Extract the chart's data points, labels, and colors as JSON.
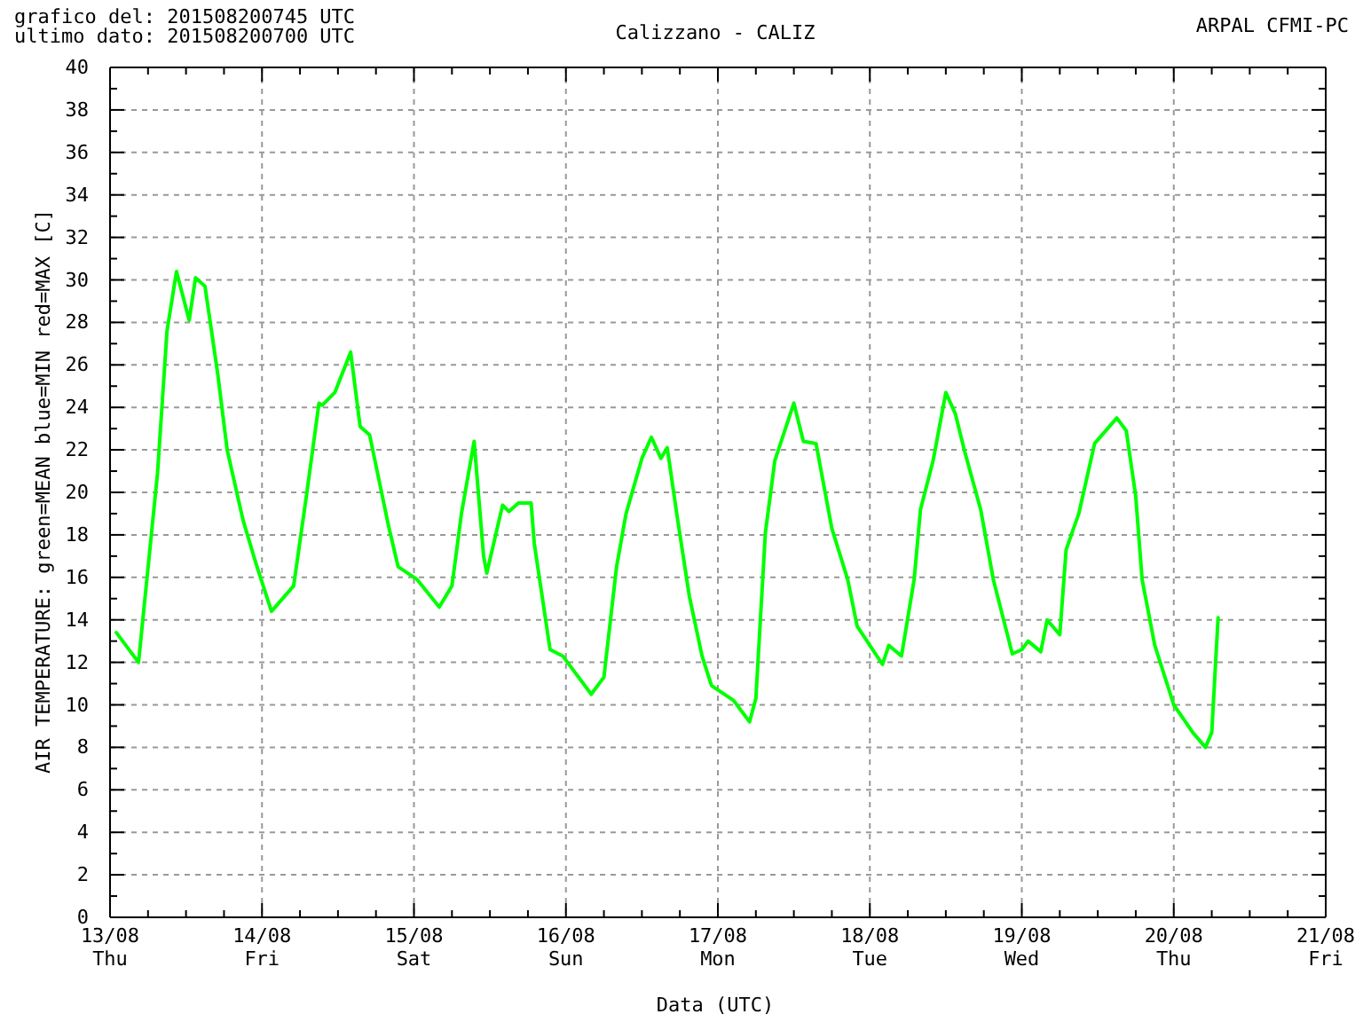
{
  "chart_data": {
    "type": "line",
    "title": "Calizzano - CALIZ",
    "annotations": [
      "grafico del: 201508200745 UTC",
      "ultimo dato: 201508200700 UTC",
      "ARPAL CFMI-PC"
    ],
    "xlabel": "Data (UTC)",
    "ylabel": "AIR TEMPERATURE: green=MEAN  blue=MIN  red=MAX     [C]",
    "xlim": [
      "2015-08-13",
      "2015-08-21"
    ],
    "ylim": [
      0,
      40
    ],
    "xticks": [
      {
        "value": "2015-08-13",
        "label": "13/08\nThu"
      },
      {
        "value": "2015-08-13T06:00",
        "label": null
      },
      {
        "value": "2015-08-13T12:00",
        "label": null
      },
      {
        "value": "2015-08-13T18:00",
        "label": null
      },
      {
        "value": "2015-08-14",
        "label": "14/08\nFri"
      },
      {
        "value": "2015-08-14T06:00",
        "label": null
      },
      {
        "value": "2015-08-14T12:00",
        "label": null
      },
      {
        "value": "2015-08-14T18:00",
        "label": null
      },
      {
        "value": "2015-08-15",
        "label": "15/08\nSat"
      },
      {
        "value": "2015-08-15T06:00",
        "label": null
      },
      {
        "value": "2015-08-15T12:00",
        "label": null
      },
      {
        "value": "2015-08-15T18:00",
        "label": null
      },
      {
        "value": "2015-08-16",
        "label": "16/08\nSun"
      },
      {
        "value": "2015-08-16T06:00",
        "label": null
      },
      {
        "value": "2015-08-16T12:00",
        "label": null
      },
      {
        "value": "2015-08-16T18:00",
        "label": null
      },
      {
        "value": "2015-08-17",
        "label": "17/08\nMon"
      },
      {
        "value": "2015-08-17T06:00",
        "label": null
      },
      {
        "value": "2015-08-17T12:00",
        "label": null
      },
      {
        "value": "2015-08-17T18:00",
        "label": null
      },
      {
        "value": "2015-08-18",
        "label": "18/08\nTue"
      },
      {
        "value": "2015-08-18T06:00",
        "label": null
      },
      {
        "value": "2015-08-18T12:00",
        "label": null
      },
      {
        "value": "2015-08-18T18:00",
        "label": null
      },
      {
        "value": "2015-08-19",
        "label": "19/08\nWed"
      },
      {
        "value": "2015-08-19T06:00",
        "label": null
      },
      {
        "value": "2015-08-19T12:00",
        "label": null
      },
      {
        "value": "2015-08-19T18:00",
        "label": null
      },
      {
        "value": "2015-08-20",
        "label": "20/08\nThu"
      },
      {
        "value": "2015-08-20T06:00",
        "label": null
      },
      {
        "value": "2015-08-20T12:00",
        "label": null
      },
      {
        "value": "2015-08-20T18:00",
        "label": null
      },
      {
        "value": "2015-08-21",
        "label": "21/08\nFri"
      }
    ],
    "yticks": [
      0,
      {
        "value": 1,
        "label": null
      },
      2,
      {
        "value": 3,
        "label": null
      },
      4,
      {
        "value": 5,
        "label": null
      },
      6,
      {
        "value": 7,
        "label": null
      },
      8,
      {
        "value": 9,
        "label": null
      },
      10,
      {
        "value": 11,
        "label": null
      },
      12,
      {
        "value": 13,
        "label": null
      },
      14,
      {
        "value": 15,
        "label": null
      },
      16,
      {
        "value": 17,
        "label": null
      },
      18,
      {
        "value": 19,
        "label": null
      },
      20,
      {
        "value": 21,
        "label": null
      },
      22,
      {
        "value": 23,
        "label": null
      },
      24,
      {
        "value": 25,
        "label": null
      },
      26,
      {
        "value": 27,
        "label": null
      },
      28,
      {
        "value": 29,
        "label": null
      },
      30,
      {
        "value": 31,
        "label": null
      },
      32,
      {
        "value": 33,
        "label": null
      },
      34,
      {
        "value": 35,
        "label": null
      },
      36,
      {
        "value": 37,
        "label": null
      },
      38,
      {
        "value": 39,
        "label": null
      },
      40
    ],
    "grid": true,
    "line_style": "solid",
    "series": [
      {
        "color": "#00ff00",
        "x": [
          "2015-08-13T01:00",
          "2015-08-13T04:30",
          "2015-08-13T07:30",
          "2015-08-13T09:00",
          "2015-08-13T10:30",
          "2015-08-13T12:30",
          "2015-08-13T13:30",
          "2015-08-13T15:00",
          "2015-08-13T17:00",
          "2015-08-13T18:30",
          "2015-08-13T21:00",
          "2015-08-13T23:00",
          "2015-08-14T01:30",
          "2015-08-14T05:00",
          "2015-08-14T07:00",
          "2015-08-14T09:00",
          "2015-08-14T09:30",
          "2015-08-14T11:30",
          "2015-08-14T14:00",
          "2015-08-14T15:30",
          "2015-08-14T17:00",
          "2015-08-14T20:00",
          "2015-08-14T21:30",
          "2015-08-15T00:30",
          "2015-08-15T04:00",
          "2015-08-15T06:00",
          "2015-08-15T07:30",
          "2015-08-15T09:30",
          "2015-08-15T11:00",
          "2015-08-15T11:30",
          "2015-08-15T14:00",
          "2015-08-15T15:00",
          "2015-08-15T16:30",
          "2015-08-15T18:30",
          "2015-08-15T19:00",
          "2015-08-15T21:30",
          "2015-08-15T23:30",
          "2015-08-16T01:30",
          "2015-08-16T04:00",
          "2015-08-16T06:00",
          "2015-08-16T08:00",
          "2015-08-16T09:30",
          "2015-08-16T12:00",
          "2015-08-16T13:30",
          "2015-08-16T15:00",
          "2015-08-16T16:00",
          "2015-08-16T17:30",
          "2015-08-16T19:30",
          "2015-08-16T21:30",
          "2015-08-16T23:00",
          "2015-08-17T02:30",
          "2015-08-17T05:00",
          "2015-08-17T06:00",
          "2015-08-17T07:30",
          "2015-08-17T09:00",
          "2015-08-17T12:00",
          "2015-08-17T13:30",
          "2015-08-17T15:30",
          "2015-08-17T18:00",
          "2015-08-17T20:30",
          "2015-08-17T22:00",
          "2015-08-18T02:00",
          "2015-08-18T03:00",
          "2015-08-18T05:00",
          "2015-08-18T07:00",
          "2015-08-18T08:00",
          "2015-08-18T10:00",
          "2015-08-18T12:00",
          "2015-08-18T13:30",
          "2015-08-18T15:00",
          "2015-08-18T17:30",
          "2015-08-18T19:30",
          "2015-08-18T22:30",
          "2015-08-19T00:00",
          "2015-08-19T01:00",
          "2015-08-19T03:00",
          "2015-08-19T04:00",
          "2015-08-19T06:00",
          "2015-08-19T07:00",
          "2015-08-19T09:00",
          "2015-08-19T11:30",
          "2015-08-19T15:00",
          "2015-08-19T16:30",
          "2015-08-19T18:00",
          "2015-08-19T19:00",
          "2015-08-19T21:00",
          "2015-08-20T00:00",
          "2015-08-20T03:00",
          "2015-08-20T05:00",
          "2015-08-20T06:00",
          "2015-08-20T06:30",
          "2015-08-20T07:00"
        ],
        "values": [
          13.4,
          12.0,
          20.9,
          27.6,
          30.4,
          28.1,
          30.1,
          29.7,
          25.6,
          22.0,
          18.7,
          16.7,
          14.4,
          15.6,
          19.8,
          24.2,
          24.1,
          24.7,
          26.6,
          23.1,
          22.7,
          18.4,
          16.5,
          15.9,
          14.6,
          15.6,
          19.0,
          22.4,
          17.0,
          16.2,
          19.4,
          19.1,
          19.5,
          19.5,
          17.6,
          12.6,
          12.3,
          11.5,
          10.5,
          11.3,
          16.5,
          19.0,
          21.6,
          22.6,
          21.6,
          22.1,
          19.0,
          15.1,
          12.3,
          10.9,
          10.2,
          9.2,
          10.3,
          18.1,
          21.5,
          24.2,
          22.4,
          22.3,
          18.3,
          15.9,
          13.7,
          11.9,
          12.8,
          12.3,
          15.9,
          19.2,
          21.5,
          24.7,
          23.7,
          21.9,
          19.2,
          15.9,
          12.4,
          12.6,
          13.0,
          12.5,
          14.0,
          13.3,
          17.3,
          19.0,
          22.3,
          23.5,
          22.9,
          19.8,
          15.9,
          12.8,
          10.0,
          8.7,
          8.0,
          8.7,
          11.4,
          14.1
        ]
      }
    ]
  }
}
